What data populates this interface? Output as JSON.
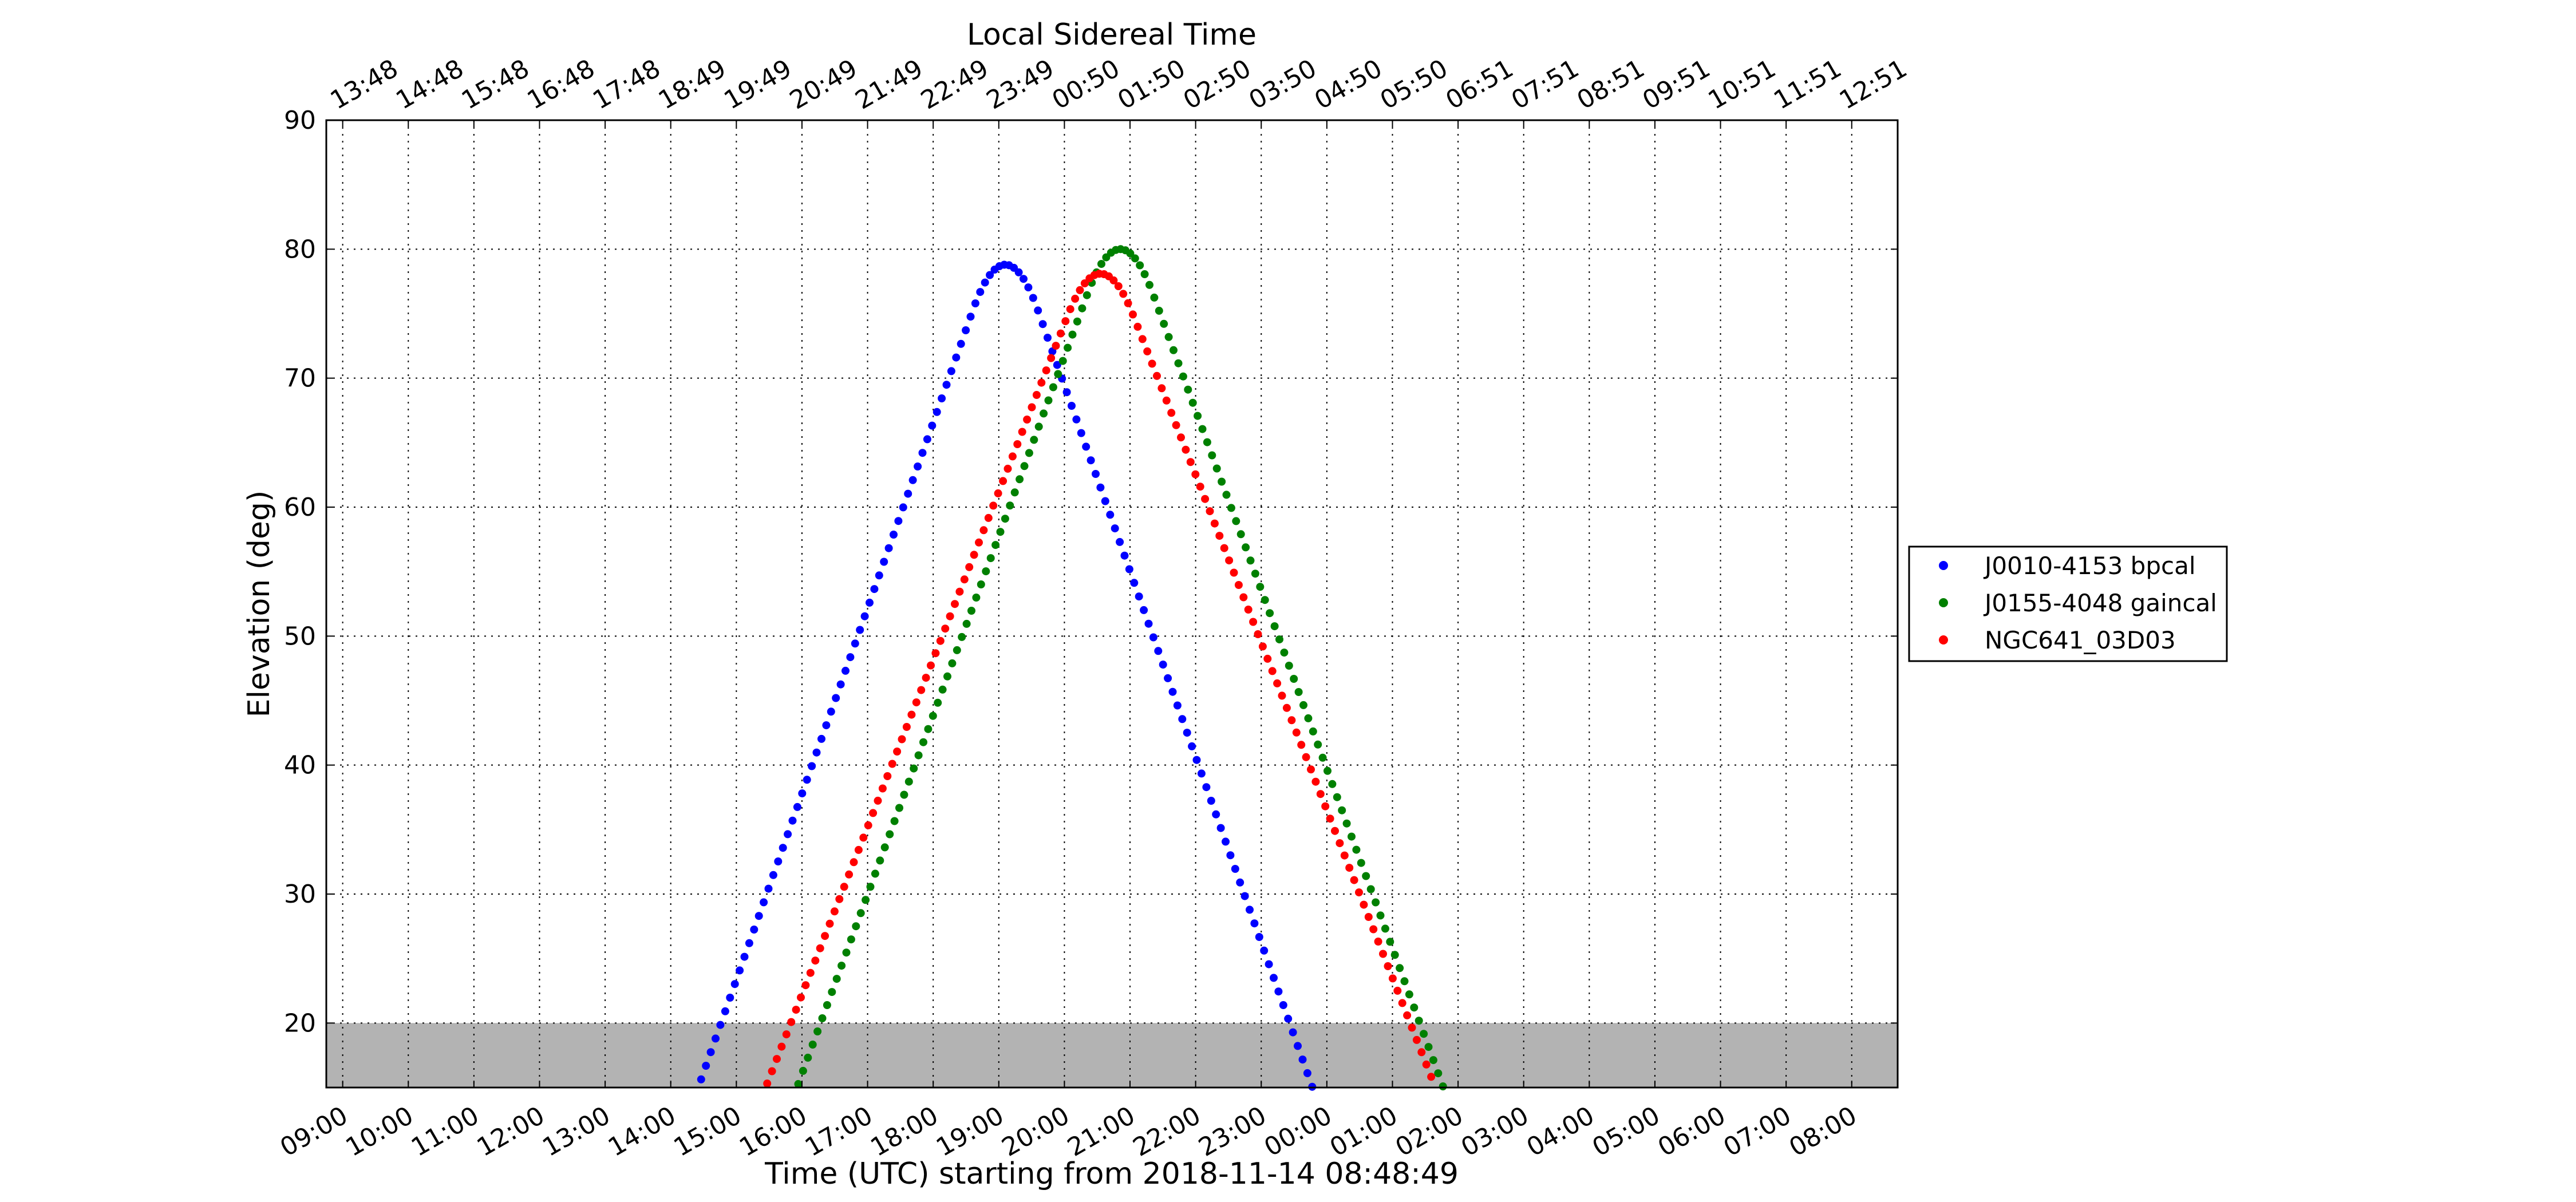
{
  "chart_data": {
    "type": "scatter",
    "title": "Local Sidereal Time",
    "xlabel": "Time (UTC) starting from 2018-11-14 08:48:49",
    "ylabel": "Elevation (deg)",
    "xlim": [
      -0.25,
      23.7
    ],
    "ylim": [
      15,
      90
    ],
    "yticks": [
      20,
      30,
      40,
      50,
      60,
      70,
      80,
      90
    ],
    "xtick_hours": [
      0,
      1,
      2,
      3,
      4,
      5,
      6,
      7,
      8,
      9,
      10,
      11,
      12,
      13,
      14,
      15,
      16,
      17,
      18,
      19,
      20,
      21,
      22,
      23
    ],
    "xtick_labels": [
      "09:00",
      "10:00",
      "11:00",
      "12:00",
      "13:00",
      "14:00",
      "15:00",
      "16:00",
      "17:00",
      "18:00",
      "19:00",
      "20:00",
      "21:00",
      "22:00",
      "23:00",
      "00:00",
      "01:00",
      "02:00",
      "03:00",
      "04:00",
      "05:00",
      "06:00",
      "07:00",
      "08:00"
    ],
    "top_tick_labels": [
      "13:48",
      "14:48",
      "15:48",
      "16:48",
      "17:48",
      "18:49",
      "19:49",
      "20:49",
      "21:49",
      "22:49",
      "23:49",
      "00:50",
      "01:50",
      "02:50",
      "03:50",
      "04:50",
      "05:50",
      "06:51",
      "07:51",
      "08:51",
      "09:51",
      "10:51",
      "11:51",
      "12:51"
    ],
    "grid": true,
    "horizon_band": {
      "from": 15,
      "to": 20,
      "color": "#b3b3b3"
    },
    "legend_position": "right",
    "x_units": "hours after 09:00 UTC",
    "series": [
      {
        "name": "J0010-4153 bpcal",
        "color": "#0000ff",
        "peak_hour": 10.1,
        "peak_elev": 78.8,
        "slope": 14.4,
        "start_hour": 3.85,
        "end_hour": 16.6
      },
      {
        "name": "J0155-4048 gaincal",
        "color": "#008000",
        "peak_hour": 11.85,
        "peak_elev": 80.0,
        "slope": 13.9,
        "start_hour": 5.55,
        "end_hour": 18.3
      },
      {
        "name": "NGC641_03D03",
        "color": "#ff0000",
        "peak_hour": 11.55,
        "peak_elev": 78.1,
        "slope": 13.0,
        "start_hour": 5.15,
        "end_hour": 18.05
      }
    ]
  }
}
